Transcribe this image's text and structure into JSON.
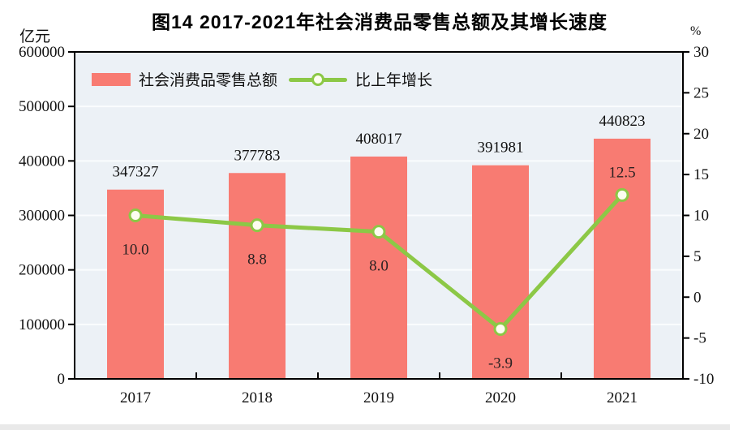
{
  "title": "图14  2017-2021年社会消费品零售总额及其增长速度",
  "axes": {
    "left_unit": "亿元",
    "right_unit": "%",
    "left_ticks": [
      "0",
      "100000",
      "200000",
      "300000",
      "400000",
      "500000",
      "600000"
    ],
    "right_ticks": [
      "-10",
      "-5",
      "0",
      "5",
      "10",
      "15",
      "20",
      "25",
      "30"
    ]
  },
  "legend": {
    "bar_label": "社会消费品零售总额",
    "line_label": "比上年增长"
  },
  "colors": {
    "bar": "#f87b72",
    "line": "#8cc846",
    "marker_fill": "#fdfdf0",
    "plot_bg": "#ecf1f6",
    "gridline": "#fafcfe",
    "frame": "#000000",
    "tick_label": "#111111",
    "bar_value_label": "#111111",
    "rate_value_label": "#2b2222"
  },
  "chart_data": {
    "type": "bar+line",
    "title": "图14  2017-2021年社会消费品零售总额及其增长速度",
    "categories": [
      "2017",
      "2018",
      "2019",
      "2020",
      "2021"
    ],
    "series": [
      {
        "name": "社会消费品零售总额",
        "type": "bar",
        "axis": "left",
        "values": [
          347327,
          377783,
          408017,
          391981,
          440823
        ],
        "value_labels": [
          "347327",
          "377783",
          "408017",
          "391981",
          "440823"
        ]
      },
      {
        "name": "比上年增长",
        "type": "line",
        "axis": "right",
        "values": [
          10.0,
          8.8,
          8.0,
          -3.9,
          12.5
        ],
        "value_labels": [
          "10.0",
          "8.8",
          "8.0",
          "-3.9",
          "12.5"
        ],
        "label_positions": [
          "below",
          "below",
          "below",
          "below",
          "above"
        ]
      }
    ],
    "left_axis_label": "亿元",
    "right_axis_label": "%",
    "left_ylim": [
      0,
      600000
    ],
    "left_step": 100000,
    "right_ylim": [
      -10,
      30
    ],
    "right_step": 5,
    "grid": true,
    "legend_position": "top-left-inside"
  }
}
